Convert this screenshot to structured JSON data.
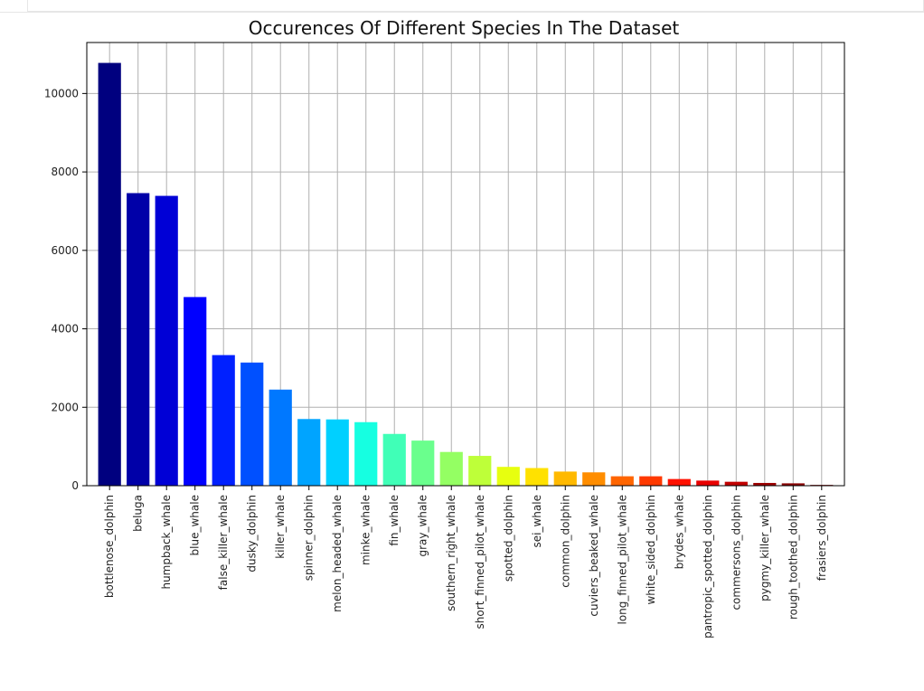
{
  "chart_data": {
    "type": "bar",
    "title": "Occurences Of Different Species In The Dataset",
    "xlabel": "",
    "ylabel": "",
    "ylim": [
      0,
      11300
    ],
    "yticks": [
      0,
      2000,
      4000,
      6000,
      8000,
      10000
    ],
    "grid": true,
    "colormap": "jet",
    "categories": [
      "bottlenose_dolphin",
      "beluga",
      "humpback_whale",
      "blue_whale",
      "false_killer_whale",
      "dusky_dolphin",
      "killer_whale",
      "spinner_dolphin",
      "melon_headed_whale",
      "minke_whale",
      "fin_whale",
      "gray_whale",
      "southern_right_whale",
      "short_finned_pilot_whale",
      "spotted_dolphin",
      "sei_whale",
      "common_dolphin",
      "cuviers_beaked_whale",
      "long_finned_pilot_whale",
      "white_sided_dolphin",
      "brydes_whale",
      "pantropic_spotted_dolphin",
      "commersons_dolphin",
      "pygmy_killer_whale",
      "rough_toothed_dolphin",
      "frasiers_dolphin"
    ],
    "values": [
      10780,
      7460,
      7390,
      4810,
      3330,
      3140,
      2450,
      1700,
      1690,
      1620,
      1320,
      1150,
      860,
      760,
      480,
      450,
      360,
      340,
      240,
      240,
      170,
      130,
      100,
      70,
      60,
      20
    ],
    "colors": [
      "#00007f",
      "#0000a8",
      "#0000d6",
      "#0000ff",
      "#0020ff",
      "#0050ff",
      "#0078ff",
      "#00a4ff",
      "#00d0ff",
      "#16ffe1",
      "#40ffb7",
      "#6aff8d",
      "#94ff63",
      "#beff39",
      "#e7ff0f",
      "#ffe100",
      "#ffb900",
      "#ff8d00",
      "#ff6500",
      "#ff3900",
      "#ff1100",
      "#e80000",
      "#c10000",
      "#9c0000",
      "#8a0000",
      "#7f0000"
    ]
  }
}
